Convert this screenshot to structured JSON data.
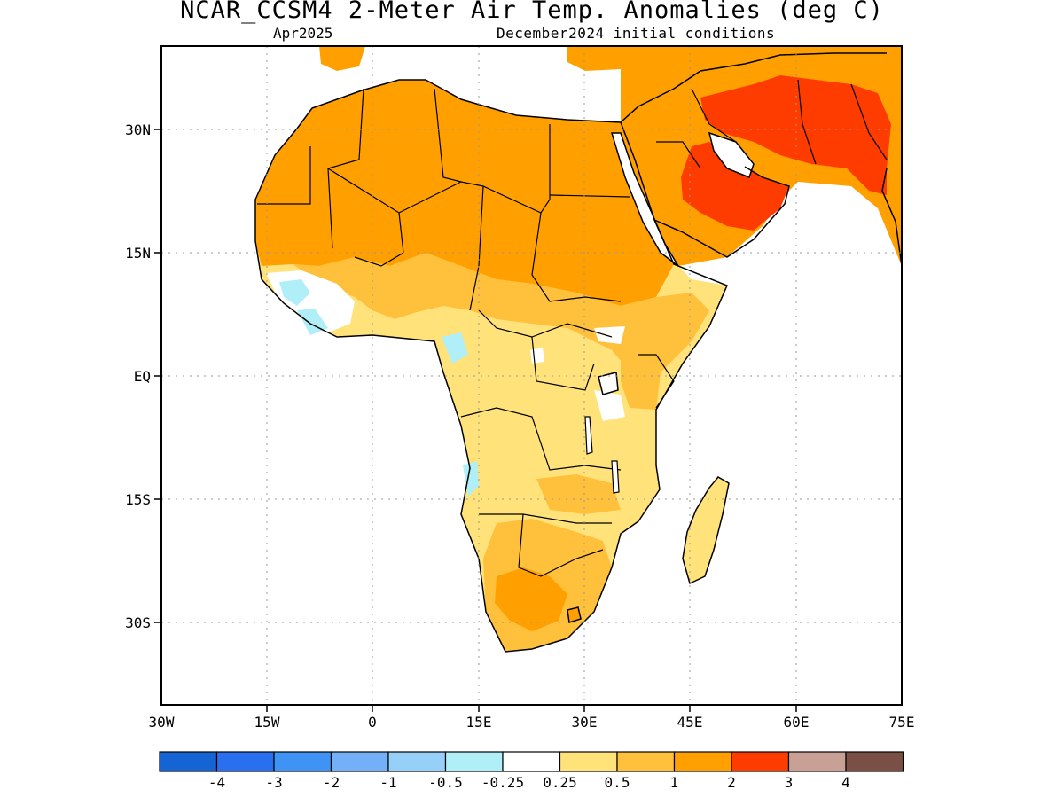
{
  "header": {
    "title": "NCAR_CCSM4 2-Meter Air Temp. Anomalies (deg C)",
    "valid_month": "Apr2025",
    "init_conditions": "December2024 initial conditions"
  },
  "axes": {
    "lon_labels": [
      "30W",
      "15W",
      "0",
      "15E",
      "30E",
      "45E",
      "60E",
      "75E"
    ],
    "lat_labels": [
      "30N",
      "15N",
      "EQ",
      "15S",
      "30S"
    ],
    "lon_range": [
      -30,
      75
    ],
    "lat_range": [
      -40,
      40
    ],
    "grid": "dotted"
  },
  "colorbar": {
    "colors": [
      "#1564d3",
      "#2a6ff0",
      "#3f93f4",
      "#73b0f7",
      "#96cff8",
      "#b0eef8",
      "#ffffff",
      "#ffe27a",
      "#ffc03c",
      "#ffa000",
      "#ff3c00",
      "#c8a096",
      "#7a5046"
    ],
    "labels": [
      "-4",
      "-3",
      "-2",
      "-1",
      "-0.5",
      "-0.25",
      "0.25",
      "0.5",
      "1",
      "2",
      "3",
      "4"
    ]
  },
  "map_colors": {
    "anom_0_25_0_5": "#ffe27a",
    "anom_0_5_1": "#ffc03c",
    "anom_1_2": "#ffa000",
    "anom_2_3": "#ff3c00",
    "anom_neg_0_25_neg_0_5": "#b0eef8",
    "anom_neg_0_25_0_25": "#ffffff"
  }
}
